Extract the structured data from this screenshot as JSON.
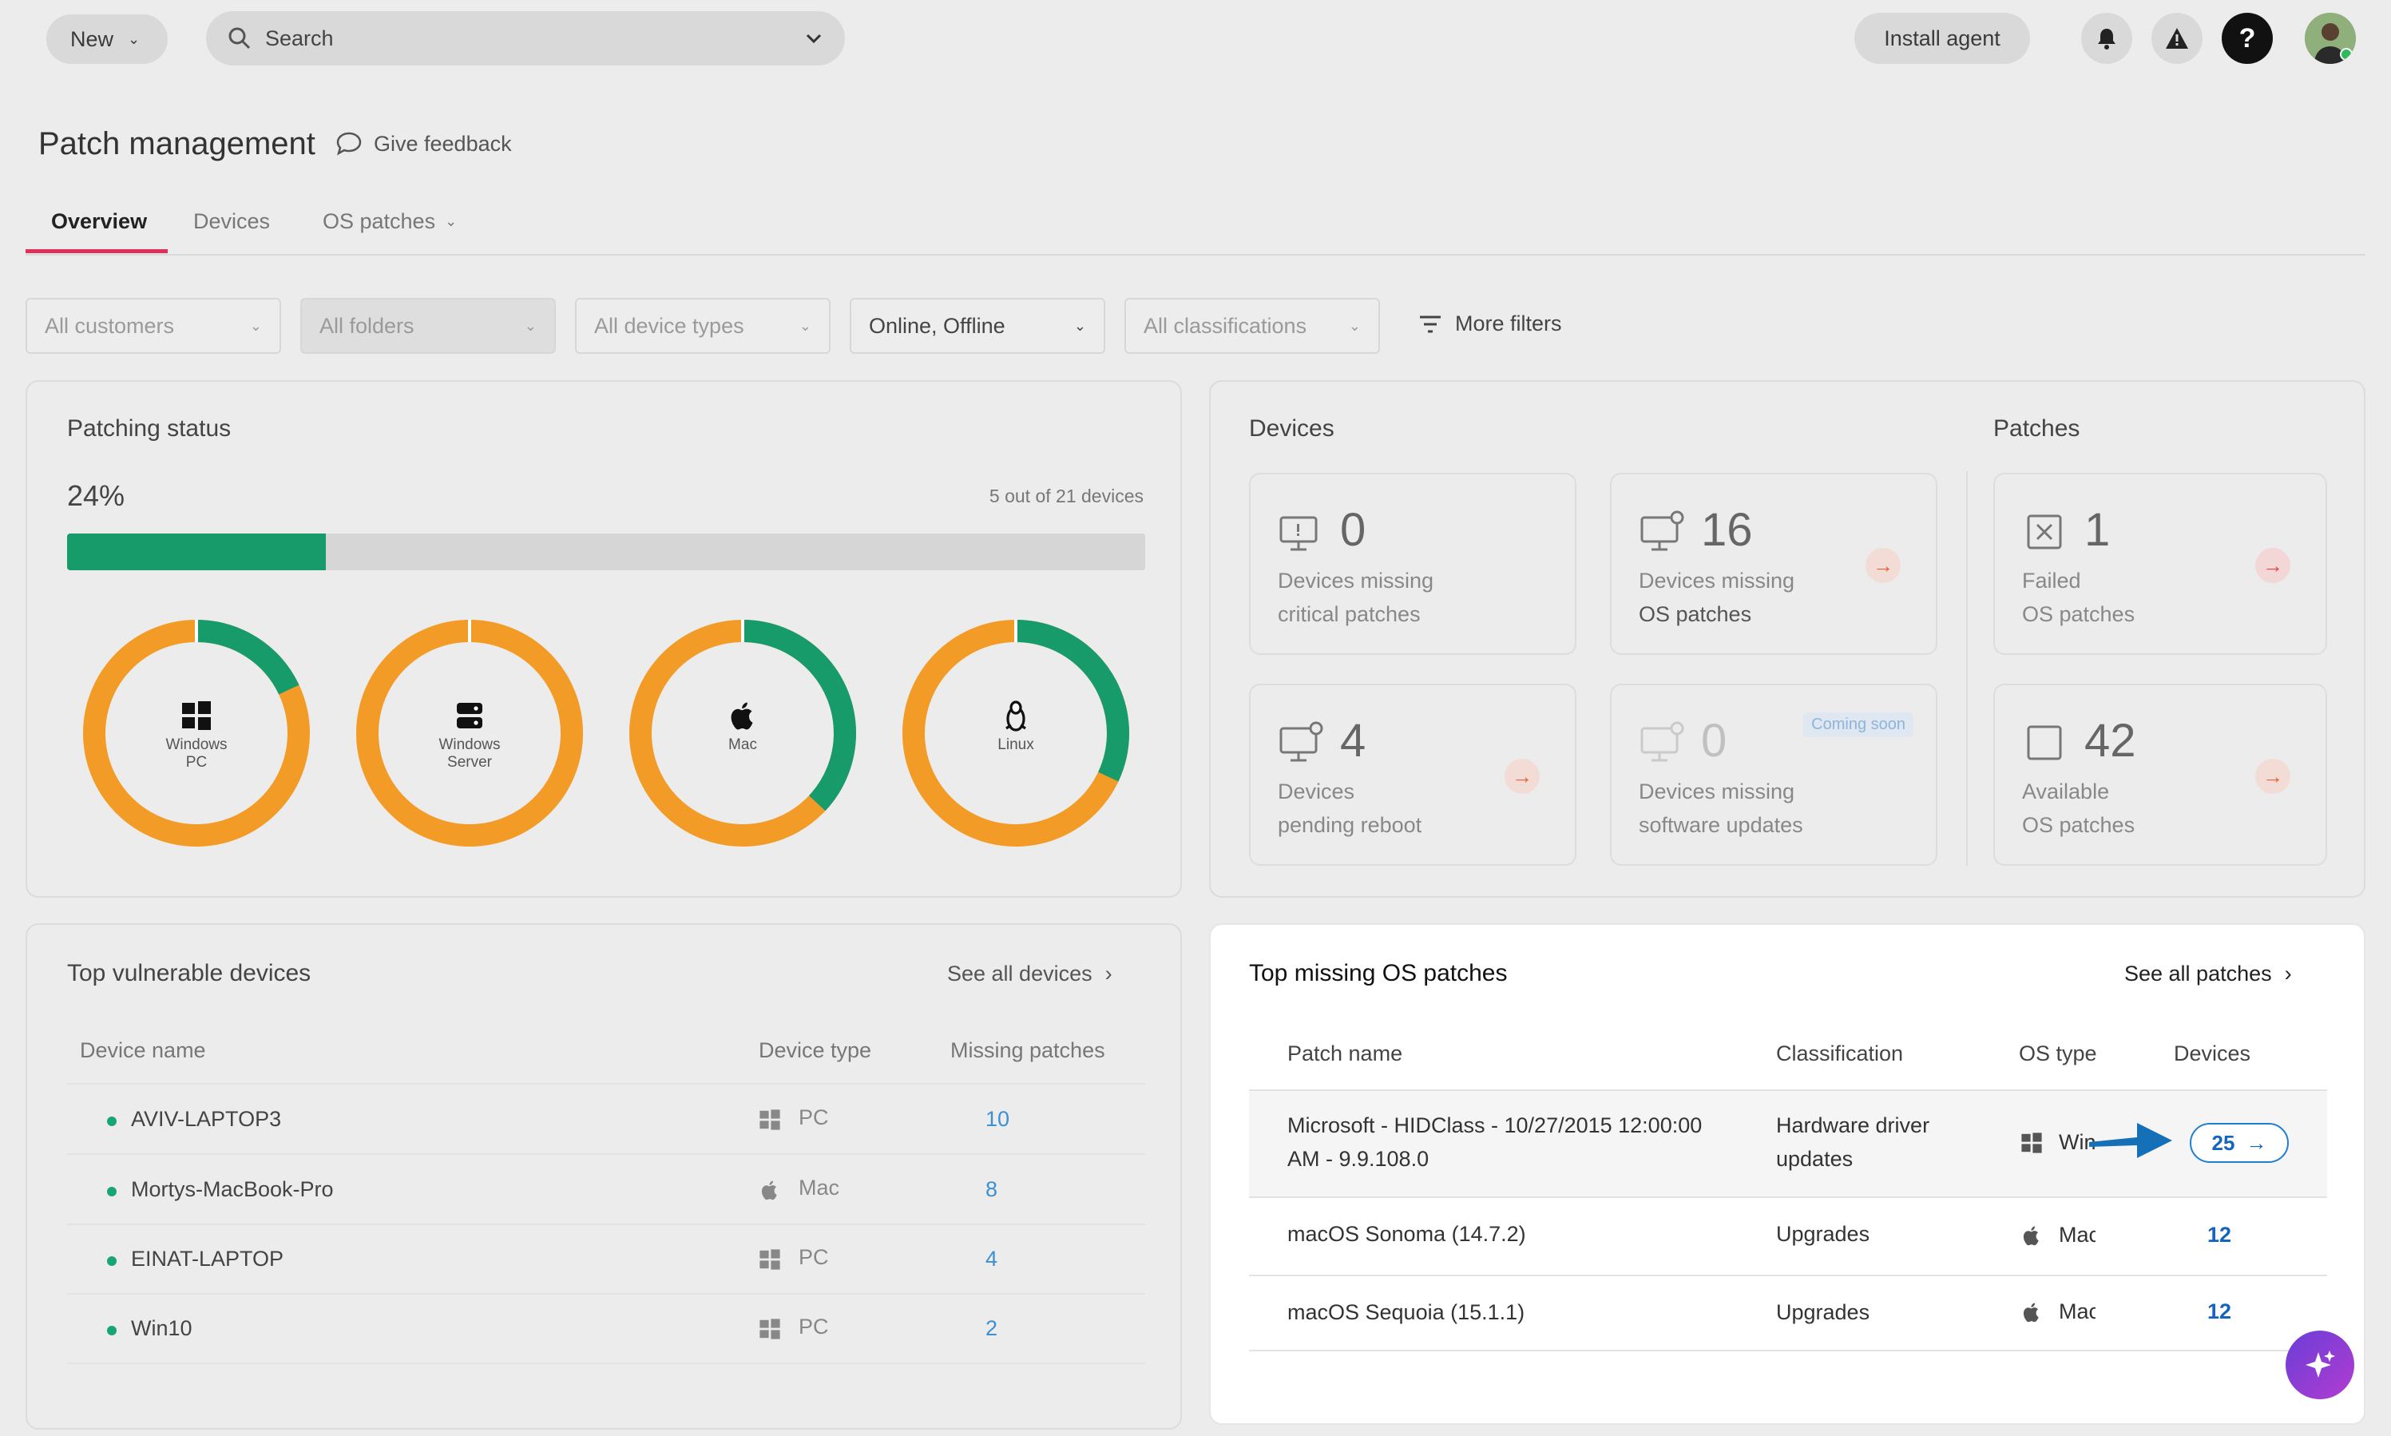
{
  "topbar": {
    "new_label": "New",
    "search_placeholder": "Search",
    "install_agent_label": "Install agent"
  },
  "page": {
    "title": "Patch management",
    "feedback_label": "Give feedback"
  },
  "tabs": [
    {
      "label": "Overview",
      "active": true
    },
    {
      "label": "Devices",
      "active": false
    },
    {
      "label": "OS patches",
      "active": false
    }
  ],
  "filters": {
    "customers": "All customers",
    "folders": "All folders",
    "device_types": "All device types",
    "status": "Online, Offline",
    "classifications": "All classifications",
    "more": "More filters"
  },
  "patching_status": {
    "title": "Patching status",
    "percent": "24%",
    "devices_text": "5 out of 21 devices",
    "progress": 0.24,
    "donuts": [
      {
        "label1": "Windows",
        "label2": "PC",
        "icon": "windows-icon",
        "patched": 0.18
      },
      {
        "label1": "Windows",
        "label2": "Server",
        "icon": "server-icon",
        "patched": 0.0
      },
      {
        "label1": "Mac",
        "label2": "",
        "icon": "apple-icon",
        "patched": 0.37
      },
      {
        "label1": "Linux",
        "label2": "",
        "icon": "linux-icon",
        "patched": 0.32
      }
    ],
    "colors": {
      "patched": "#179b6a",
      "unpatched": "#f39b27",
      "bar_bg": "#d6d6d6"
    }
  },
  "devices_panel": {
    "devices_title": "Devices",
    "patches_title": "Patches",
    "coming_soon": "Coming soon",
    "tiles": {
      "critical": {
        "num": "0",
        "l1": "Devices missing",
        "l2": "critical patches"
      },
      "os": {
        "num": "16",
        "l1": "Devices missing",
        "l2": "OS patches"
      },
      "reboot": {
        "num": "4",
        "l1": "Devices",
        "l2": "pending reboot"
      },
      "software": {
        "num": "0",
        "l1": "Devices missing",
        "l2": "software updates"
      },
      "failed": {
        "num": "1",
        "l1": "Failed",
        "l2": "OS patches"
      },
      "available": {
        "num": "42",
        "l1": "Available",
        "l2": "OS patches"
      }
    }
  },
  "vulnerable": {
    "title": "Top vulnerable devices",
    "see_all": "See all devices",
    "headers": [
      "Device name",
      "Device type",
      "Missing patches"
    ],
    "rows": [
      {
        "name": "AVIV-LAPTOP3",
        "type": "PC",
        "icon": "windows-icon",
        "missing": "10"
      },
      {
        "name": "Mortys-MacBook-Pro",
        "type": "Mac",
        "icon": "apple-icon",
        "missing": "8"
      },
      {
        "name": "EINAT-LAPTOP",
        "type": "PC",
        "icon": "windows-icon",
        "missing": "4"
      },
      {
        "name": "Win10",
        "type": "PC",
        "icon": "windows-icon",
        "missing": "2"
      }
    ]
  },
  "missing_patches": {
    "title": "Top missing OS patches",
    "see_all": "See all patches",
    "headers": [
      "Patch name",
      "Classification",
      "OS type",
      "Devices"
    ],
    "rows": [
      {
        "name1": "Microsoft - HIDClass - 10/27/2015 12:00:00",
        "name2": "AM - 9.9.108.0",
        "class1": "Hardware driver",
        "class2": "updates",
        "os": "Windows",
        "icon": "windows-icon",
        "devices": "25"
      },
      {
        "name1": "macOS Sonoma (14.7.2)",
        "name2": "",
        "class1": "Upgrades",
        "class2": "",
        "os": "Mac",
        "icon": "apple-icon",
        "devices": "12"
      },
      {
        "name1": "macOS Sequoia (15.1.1)",
        "name2": "",
        "class1": "Upgrades",
        "class2": "",
        "os": "Mac",
        "icon": "apple-icon",
        "devices": "12"
      }
    ]
  }
}
